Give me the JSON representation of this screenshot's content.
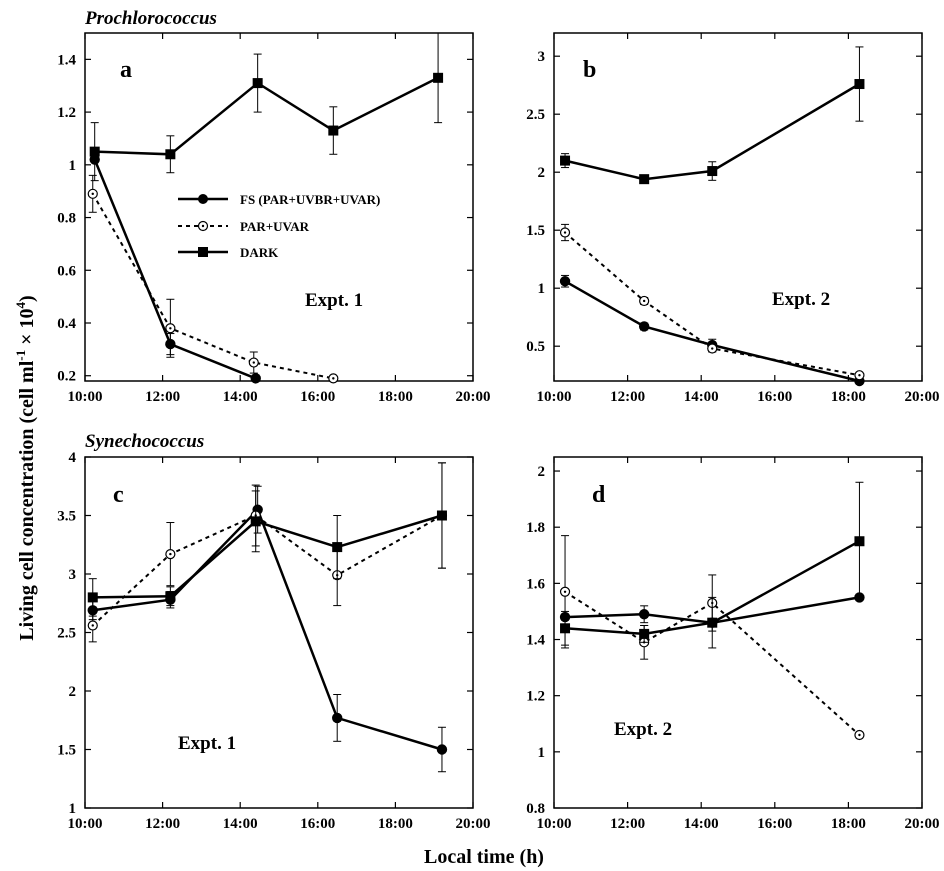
{
  "group_titles": {
    "top": "Prochlorococcus",
    "bottom": "Synechococcus"
  },
  "axis_labels": {
    "y_main": "Living cell concentration (cell ml",
    "y_exp1": "-1",
    "y_times": " × 10",
    "y_exp2": "4",
    "y_close": ")",
    "x": "Local time (h)"
  },
  "legend": [
    {
      "label": "FS (PAR+UVBR+UVAR)"
    },
    {
      "label": "PAR+UVAR"
    },
    {
      "label": "DARK"
    }
  ],
  "colors": {
    "lines": "#000000",
    "background": "#ffffff"
  },
  "chart_data": [
    {
      "type": "line",
      "panel": "a",
      "annotation": "Expt. 1",
      "group": "Prochlorococcus",
      "xlabel": "Local time (h)",
      "xlim": [
        10,
        20
      ],
      "xticks": [
        "10:00",
        "12:00",
        "14:00",
        "16:00",
        "18:00",
        "20:00"
      ],
      "ylim": [
        0.18,
        1.5
      ],
      "yticks": [
        "0.2",
        "0.4",
        "0.6",
        "0.8",
        "1",
        "1.2",
        "1.4"
      ],
      "grid": false,
      "legend_position": "middle-left",
      "series": [
        {
          "name": "FS (PAR+UVBR+UVAR)",
          "style": "solid",
          "marker": "filled-circle",
          "x": [
            10.25,
            12.2,
            14.4
          ],
          "y": [
            1.02,
            0.32,
            0.19
          ],
          "err": [
            0,
            0.04,
            0
          ]
        },
        {
          "name": "PAR+UVAR",
          "style": "dotted",
          "marker": "open-circle",
          "x": [
            10.2,
            12.2,
            14.35,
            16.4
          ],
          "y": [
            0.89,
            0.38,
            0.25,
            0.19
          ],
          "err": [
            0.07,
            0.11,
            0.04,
            0
          ]
        },
        {
          "name": "DARK",
          "style": "solid",
          "marker": "filled-square",
          "x": [
            10.25,
            12.2,
            14.45,
            16.4,
            19.1
          ],
          "y": [
            1.05,
            1.04,
            1.31,
            1.13,
            1.33
          ],
          "err": [
            0.11,
            0.07,
            0.11,
            0.09,
            0.17
          ]
        }
      ]
    },
    {
      "type": "line",
      "panel": "b",
      "annotation": "Expt. 2",
      "group": "Prochlorococcus",
      "xlim": [
        10,
        20
      ],
      "xticks": [
        "10:00",
        "12:00",
        "14:00",
        "16:00",
        "18:00",
        "20:00"
      ],
      "ylim": [
        0.2,
        3.2
      ],
      "yticks": [
        "0.5",
        "1",
        "1.5",
        "2",
        "2.5",
        "3"
      ],
      "grid": false,
      "series": [
        {
          "name": "FS (PAR+UVBR+UVAR)",
          "style": "solid",
          "marker": "filled-circle",
          "x": [
            10.3,
            12.45,
            14.3,
            18.3
          ],
          "y": [
            1.06,
            0.67,
            0.51,
            0.2
          ],
          "err": [
            0.05,
            0.03,
            0.05,
            0
          ]
        },
        {
          "name": "PAR+UVAR",
          "style": "dotted",
          "marker": "open-circle",
          "x": [
            10.3,
            12.45,
            14.3,
            18.3
          ],
          "y": [
            1.48,
            0.89,
            0.48,
            0.25
          ],
          "err": [
            0.07,
            0.03,
            0.03,
            0
          ]
        },
        {
          "name": "DARK",
          "style": "solid",
          "marker": "filled-square",
          "x": [
            10.3,
            12.45,
            14.3,
            18.3
          ],
          "y": [
            2.1,
            1.94,
            2.01,
            2.76
          ],
          "err": [
            0.06,
            0.03,
            0.08,
            0.32
          ]
        }
      ]
    },
    {
      "type": "line",
      "panel": "c",
      "annotation": "Expt. 1",
      "group": "Synechococcus",
      "xlabel": "Local time (h)",
      "xlim": [
        10,
        20
      ],
      "xticks": [
        "10:00",
        "12:00",
        "14:00",
        "16:00",
        "18:00",
        "20:00"
      ],
      "ylim": [
        1,
        4
      ],
      "yticks": [
        "1",
        "1.5",
        "2",
        "2.5",
        "3",
        "3.5",
        "4"
      ],
      "grid": false,
      "series": [
        {
          "name": "FS (PAR+UVBR+UVAR)",
          "style": "solid",
          "marker": "filled-circle",
          "x": [
            10.2,
            12.2,
            14.45,
            16.5,
            19.2
          ],
          "y": [
            2.69,
            2.78,
            3.55,
            1.77,
            1.5
          ],
          "err": [
            0.08,
            0.07,
            0.2,
            0.2,
            0.19
          ]
        },
        {
          "name": "PAR+UVAR",
          "style": "dotted",
          "marker": "open-circle",
          "x": [
            10.2,
            12.2,
            14.4,
            16.5,
            19.2
          ],
          "y": [
            2.56,
            3.17,
            3.5,
            2.99,
            3.5
          ],
          "err": [
            0.14,
            0.27,
            0.26,
            0.26,
            0.45
          ]
        },
        {
          "name": "DARK",
          "style": "solid",
          "marker": "filled-square",
          "x": [
            10.2,
            12.2,
            14.4,
            16.5,
            19.2
          ],
          "y": [
            2.8,
            2.81,
            3.45,
            3.23,
            3.5
          ],
          "err": [
            0.16,
            0.08,
            0.26,
            0.27,
            0.45
          ]
        }
      ]
    },
    {
      "type": "line",
      "panel": "d",
      "annotation": "Expt. 2",
      "group": "Synechococcus",
      "xlabel": "Local time (h)",
      "xlim": [
        10,
        20
      ],
      "xticks": [
        "10:00",
        "12:00",
        "14:00",
        "16:00",
        "18:00",
        "20:00"
      ],
      "ylim": [
        0.8,
        2.05
      ],
      "yticks": [
        "0.8",
        "1",
        "1.2",
        "1.4",
        "1.6",
        "1.8",
        "2"
      ],
      "grid": false,
      "series": [
        {
          "name": "FS (PAR+UVBR+UVAR)",
          "style": "solid",
          "marker": "filled-circle",
          "x": [
            10.3,
            12.45,
            14.3,
            18.3
          ],
          "y": [
            1.48,
            1.49,
            1.46,
            1.55
          ],
          "err": [
            0,
            0.03,
            0,
            0
          ]
        },
        {
          "name": "PAR+UVAR",
          "style": "dotted",
          "marker": "open-circle",
          "x": [
            10.3,
            12.45,
            14.3,
            18.3
          ],
          "y": [
            1.57,
            1.39,
            1.53,
            1.06
          ],
          "err": [
            0.2,
            0.06,
            0.1,
            0
          ]
        },
        {
          "name": "DARK",
          "style": "solid",
          "marker": "filled-square",
          "x": [
            10.3,
            12.45,
            14.3,
            18.3
          ],
          "y": [
            1.44,
            1.42,
            1.46,
            1.75
          ],
          "err": [
            0.06,
            0.03,
            0.09,
            0.21
          ]
        }
      ]
    }
  ]
}
